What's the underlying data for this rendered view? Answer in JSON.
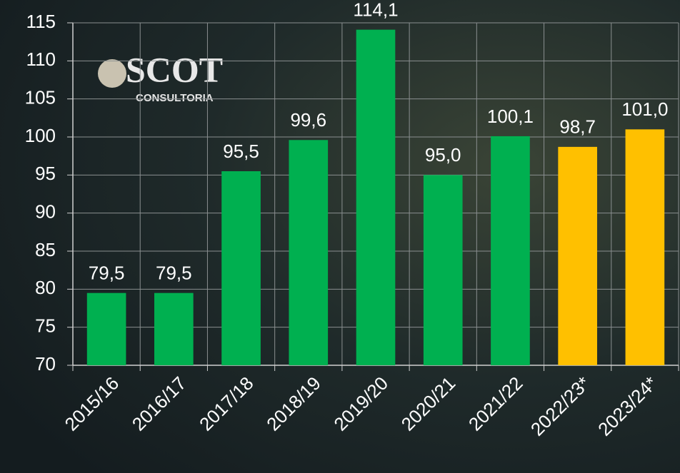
{
  "logo": {
    "name": "SCOT",
    "subtitle": "CONSULTORIA"
  },
  "chart_data": {
    "type": "bar",
    "categories": [
      "2015/16",
      "2016/17",
      "2017/18",
      "2018/19",
      "2019/20",
      "2020/21",
      "2021/22",
      "2022/23*",
      "2023/24*"
    ],
    "values": [
      79.5,
      79.5,
      95.5,
      99.6,
      114.1,
      95.0,
      100.1,
      98.7,
      101.0
    ],
    "value_labels": [
      "79,5",
      "79,5",
      "95,5",
      "99,6",
      "114,1",
      "95,0",
      "100,1",
      "98,7",
      "101,0"
    ],
    "colors": [
      "#00b050",
      "#00b050",
      "#00b050",
      "#00b050",
      "#00b050",
      "#00b050",
      "#00b050",
      "#ffc000",
      "#ffc000"
    ],
    "ylim": [
      70,
      115
    ],
    "yticks": [
      70,
      75,
      80,
      85,
      90,
      95,
      100,
      105,
      110,
      115
    ],
    "grid": true
  }
}
